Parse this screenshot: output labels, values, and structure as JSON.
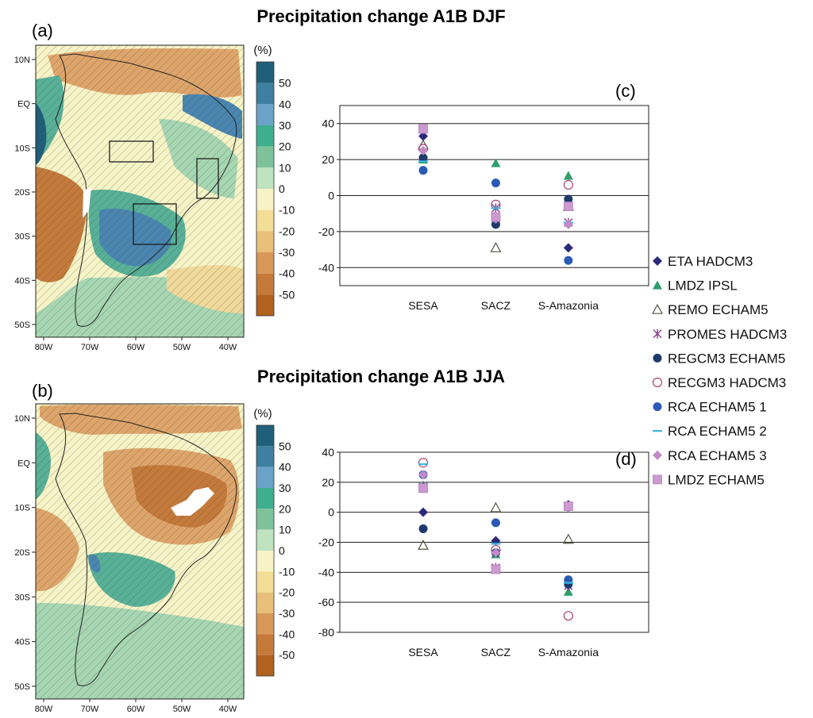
{
  "figure": {
    "title_top": "Precipitation change A1B DJF",
    "title_bottom": "Precipitation change A1B JJA"
  },
  "panel_labels": {
    "a": "(a)",
    "b": "(b)",
    "c": "(c)",
    "d": "(d)"
  },
  "maps": {
    "lat_labels": [
      "10N",
      "EQ",
      "10S",
      "20S",
      "30S",
      "40S",
      "50S"
    ],
    "lon_labels": [
      "80W",
      "70W",
      "60W",
      "50W",
      "40W"
    ],
    "colorbar": {
      "unit": "(%)",
      "ticks": [
        "50",
        "40",
        "30",
        "20",
        "10",
        "0",
        "-10",
        "-20",
        "-30",
        "-40",
        "-50"
      ],
      "colors": [
        "#1f5f7a",
        "#3f7f9f",
        "#6aa2c8",
        "#3fae8f",
        "#7fc29a",
        "#bfe2bf",
        "#f6f3c6",
        "#f3dd97",
        "#e8bf7a",
        "#d8985a",
        "#c57a3a",
        "#b0621f"
      ]
    },
    "colors": {
      "wet_strong": "#4a86b0",
      "wet_mid": "#58b197",
      "wet_light": "#a7d6b3",
      "neutral": "#f6f3c6",
      "dry_light": "#f0d99a",
      "dry_mid": "#dea56b",
      "dry_strong": "#c47a3b",
      "ocean_dark": "#1f5f7a"
    }
  },
  "legend": [
    {
      "label": "ETA HADCM3",
      "marker": "diamond-filled",
      "color": "#2b2a7a"
    },
    {
      "label": "LMDZ IPSL",
      "marker": "triangle-filled",
      "color": "#2e9e6b"
    },
    {
      "label": "REMO ECHAM5",
      "marker": "triangle-open",
      "color": "#555544"
    },
    {
      "label": "PROMES HADCM3",
      "marker": "star",
      "color": "#8b3b8f"
    },
    {
      "label": "REGCM3 ECHAM5",
      "marker": "circle-filled",
      "color": "#1c3a6b"
    },
    {
      "label": "RECGM3 HADCM3",
      "marker": "circle-open",
      "color": "#b0406e"
    },
    {
      "label": "RCA ECHAM5 1",
      "marker": "circle-filled",
      "color": "#2a5bb5"
    },
    {
      "label": "RCA ECHAM5 2",
      "marker": "dash",
      "color": "#38b5e6"
    },
    {
      "label": "RCA ECHAM5 3",
      "marker": "diamond-filled",
      "color": "#c28ac8"
    },
    {
      "label": "LMDZ ECHAM5",
      "marker": "square-filled",
      "color": "#cc99d0"
    }
  ],
  "chart_data": [
    {
      "panel": "c",
      "type": "scatter",
      "categories": [
        "SESA",
        "SACZ",
        "S-Amazonia"
      ],
      "ylim": [
        -50,
        50
      ],
      "yticks": [
        40,
        20,
        0,
        -20,
        -40
      ],
      "grid": true,
      "legend_position": "right",
      "series": [
        {
          "name": "ETA HADCM3",
          "values": [
            33,
            -12,
            -29
          ]
        },
        {
          "name": "LMDZ IPSL",
          "values": [
            20,
            18,
            11
          ]
        },
        {
          "name": "REMO ECHAM5",
          "values": [
            28,
            -29,
            -6
          ]
        },
        {
          "name": "PROMES HADCM3",
          "values": [
            23,
            -7,
            -15
          ]
        },
        {
          "name": "REGCM3 ECHAM5",
          "values": [
            21,
            -16,
            -2
          ]
        },
        {
          "name": "RECGM3 HADCM3",
          "values": [
            26,
            -5,
            6
          ]
        },
        {
          "name": "RCA ECHAM5 1",
          "values": [
            14,
            7,
            -36
          ]
        },
        {
          "name": "RCA ECHAM5 2",
          "values": [
            19,
            -7,
            -15
          ]
        },
        {
          "name": "RCA ECHAM5 3",
          "values": [
            25,
            -13,
            -16
          ]
        },
        {
          "name": "LMDZ ECHAM5",
          "values": [
            37,
            -12,
            -6
          ]
        }
      ]
    },
    {
      "panel": "d",
      "type": "scatter",
      "categories": [
        "SESA",
        "SACZ",
        "S-Amazonia"
      ],
      "ylim": [
        -80,
        40
      ],
      "yticks": [
        40,
        20,
        0,
        -20,
        -40,
        -60,
        -80
      ],
      "grid": true,
      "legend_position": "right",
      "series": [
        {
          "name": "ETA HADCM3",
          "values": [
            0,
            -19,
            5
          ]
        },
        {
          "name": "LMDZ IPSL",
          "values": [
            18,
            -28,
            -53
          ]
        },
        {
          "name": "REMO ECHAM5",
          "values": [
            -22,
            3,
            -18
          ]
        },
        {
          "name": "PROMES HADCM3",
          "values": [
            17,
            -37,
            -49
          ]
        },
        {
          "name": "REGCM3 ECHAM5",
          "values": [
            -11,
            -27,
            -48
          ]
        },
        {
          "name": "RECGM3 HADCM3",
          "values": [
            33,
            -25,
            -69
          ]
        },
        {
          "name": "RCA ECHAM5 1",
          "values": [
            25,
            -7,
            -45
          ]
        },
        {
          "name": "RCA ECHAM5 2",
          "values": [
            32,
            -21,
            -47
          ]
        },
        {
          "name": "RCA ECHAM5 3",
          "values": [
            25,
            -27,
            3
          ]
        },
        {
          "name": "LMDZ ECHAM5",
          "values": [
            16,
            -38,
            4
          ]
        }
      ]
    }
  ]
}
